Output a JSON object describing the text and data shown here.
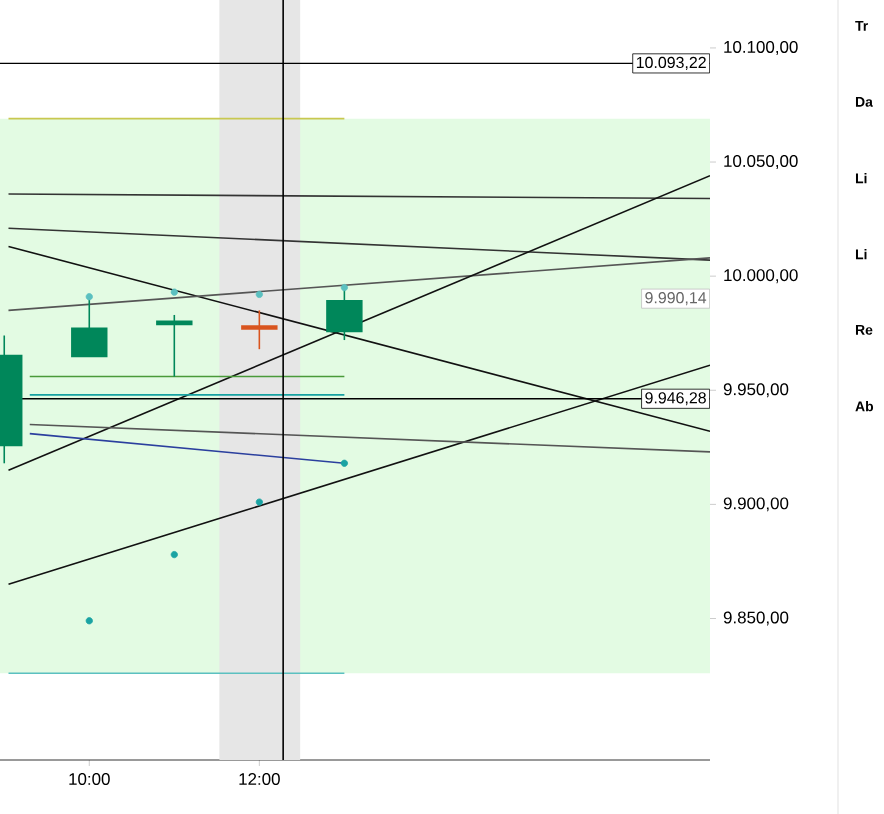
{
  "chart_data": {
    "type": "candlestick",
    "x": [
      9,
      10,
      11,
      12,
      13
    ],
    "ohlc": [
      [
        9926,
        9974,
        9918,
        9965
      ],
      [
        9965,
        9991,
        9965,
        9977
      ],
      [
        9979,
        9983,
        9956,
        9980
      ],
      [
        9978,
        9985,
        9968,
        9977
      ],
      [
        9976,
        9994,
        9972,
        9989
      ]
    ],
    "colors": [
      "#00875a",
      "#00875a",
      "#00875a",
      "#d9541e",
      "#00875a"
    ],
    "series": [
      {
        "type": "scatter",
        "x": [
          10,
          11,
          12,
          13
        ],
        "values": [
          9849,
          9878,
          9901,
          9918
        ],
        "color": "#1aa3a3"
      },
      {
        "type": "scatter",
        "x": [
          10,
          11,
          12,
          13
        ],
        "values": [
          9991,
          9993,
          9992,
          9995
        ],
        "color": "#5bc0c0"
      },
      {
        "type": "line",
        "x": [
          9.05,
          17.3
        ],
        "values": [
          10036,
          10034
        ],
        "color": "#333333"
      },
      {
        "type": "line",
        "x": [
          9.05,
          17.3
        ],
        "values": [
          10021,
          10007
        ],
        "color": "#333333"
      },
      {
        "type": "line",
        "x": [
          9.05,
          17.3
        ],
        "values": [
          10013,
          9932
        ],
        "color": "#111111"
      },
      {
        "type": "line",
        "x": [
          9.05,
          17.3
        ],
        "values": [
          9985,
          10008
        ],
        "color": "#555555"
      },
      {
        "type": "line",
        "x": [
          9.05,
          17.3
        ],
        "values": [
          9915,
          10044
        ],
        "color": "#111111"
      },
      {
        "type": "line",
        "x": [
          9.05,
          17.3
        ],
        "values": [
          9865,
          9961
        ],
        "color": "#111111"
      },
      {
        "type": "line",
        "x": [
          9.3,
          17.3
        ],
        "values": [
          9935,
          9923
        ],
        "color": "#555555"
      },
      {
        "type": "line",
        "x": [
          9.3,
          13
        ],
        "values": [
          9931,
          9918
        ],
        "color": "#2b3f9e"
      },
      {
        "type": "line",
        "x": [
          9.3,
          13
        ],
        "values": [
          9948,
          9948
        ],
        "color": "#17a2a2"
      },
      {
        "type": "line",
        "x": [
          9.3,
          13
        ],
        "values": [
          9956,
          9956
        ],
        "color": "#4a9a3a"
      },
      {
        "type": "line",
        "x": [
          9.05,
          13
        ],
        "values": [
          10069,
          10069
        ],
        "color": "#c8c850"
      },
      {
        "type": "line",
        "x": [
          9.05,
          13
        ],
        "values": [
          9826,
          9826
        ],
        "color": "#5bc0c0"
      }
    ],
    "bands": [
      {
        "axis": "y",
        "from": 9826,
        "to": 10069,
        "color": "#e3fbe3"
      },
      {
        "axis": "x",
        "from": 11.53,
        "to": 12.48,
        "color": "#e6e6e6"
      }
    ],
    "ref_lines": [
      {
        "axis": "y",
        "value": 10093.22,
        "label": "10.093,22",
        "color": "#000000"
      },
      {
        "axis": "y",
        "value": 9946.28,
        "label": "9.946,28",
        "color": "#000000"
      },
      {
        "axis": "x",
        "value": 12.28,
        "color": "#000000"
      }
    ],
    "annotations": [
      {
        "text": "9.990,14",
        "x": 17.3,
        "y": 9990.14
      },
      "Tr",
      "Da",
      "Li",
      "Li",
      "Re",
      "Ab"
    ],
    "xlim": [
      8.95,
      17.3
    ],
    "ylim": [
      9788,
      10121
    ],
    "xticks": [
      {
        "value": 10,
        "label": "10:00"
      },
      {
        "value": 12,
        "label": "12:00"
      }
    ],
    "yticks": [
      {
        "value": 9850,
        "label": "9.850,00"
      },
      {
        "value": 9900,
        "label": "9.900,00"
      },
      {
        "value": 9950,
        "label": "9.950,00"
      },
      {
        "value": 10000,
        "label": "10.000,00"
      },
      {
        "value": 10050,
        "label": "10.050,00"
      },
      {
        "value": 10100,
        "label": "10.100,00"
      }
    ]
  }
}
